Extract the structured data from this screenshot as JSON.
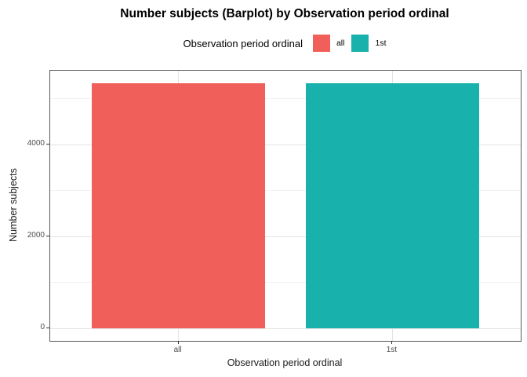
{
  "title": "Number subjects (Barplot) by Observation period ordinal",
  "legend": {
    "title": "Observation period ordinal",
    "entries": [
      {
        "label": "all",
        "color": "#F15F5A"
      },
      {
        "label": "1st",
        "color": "#18B1AC"
      }
    ]
  },
  "chart_data": {
    "type": "bar",
    "title": "Number subjects (Barplot) by Observation period ordinal",
    "categories": [
      "all",
      "1st"
    ],
    "values": [
      5340,
      5340
    ],
    "colors": [
      "#F15F5A",
      "#18B1AC"
    ],
    "xlabel": "Observation period ordinal",
    "ylabel": "Number subjects",
    "yticks": [
      0,
      2000,
      4000
    ],
    "yticks_minor": [
      1000,
      3000,
      5000
    ],
    "ylim": [
      0,
      5600
    ],
    "grid": "major+minor",
    "legend_position": "top",
    "legend_title": "Observation period ordinal"
  },
  "theme": {
    "grid_major": "#e4e4e4",
    "grid_minor": "#f2f2f2",
    "panel_border": "#595959",
    "tick_color": "#333333",
    "tick_label_color": "#4d4d4d",
    "bar_all": "#F15F5A",
    "bar_1st": "#18B1AC"
  }
}
